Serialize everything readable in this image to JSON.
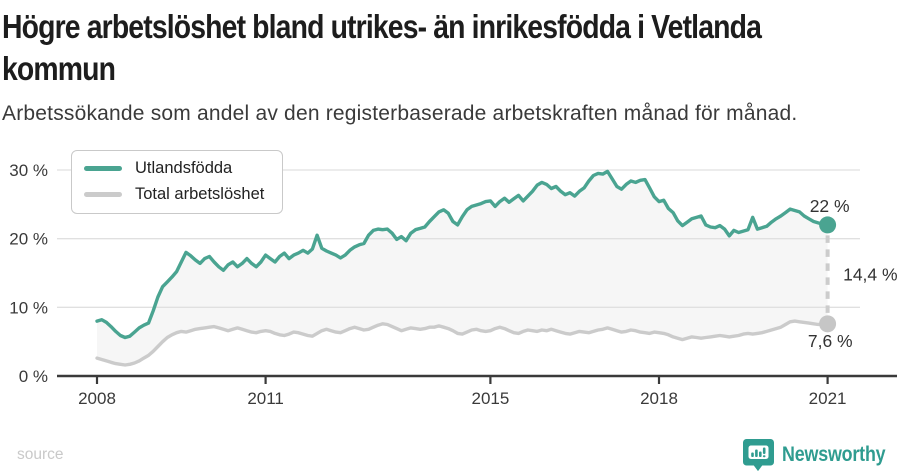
{
  "header": {
    "title_lines": [
      "Högre arbetslöshet bland utrikes- än inrikesfödda i Vetlanda",
      "kommun"
    ],
    "subtitle": "Arbetssökande som andel av den registerbaserade arbetskraften månad för månad."
  },
  "chart_data": {
    "type": "line",
    "title": "Högre arbetslöshet bland utrikes- än inrikesfödda i Vetlanda kommun",
    "subtitle": "Arbetssökande som andel av den registerbaserade arbetskraften månad för månad.",
    "x_unit": "month",
    "x_start": "2008-01",
    "x_end": "2021-01",
    "ylim": [
      0,
      30
    ],
    "grid": "horizontal",
    "legend_position": "top-left",
    "area_fill_between": "#f6f6f6",
    "yticks": [
      {
        "value": 0,
        "label": "0 %"
      },
      {
        "value": 10,
        "label": "10 %"
      },
      {
        "value": 20,
        "label": "20 %"
      },
      {
        "value": 30,
        "label": "30 %"
      }
    ],
    "xticks": [
      {
        "value": 2008,
        "label": "2008"
      },
      {
        "value": 2011,
        "label": "2011"
      },
      {
        "value": 2015,
        "label": "2015"
      },
      {
        "value": 2018,
        "label": "2018"
      },
      {
        "value": 2021,
        "label": "2021"
      }
    ],
    "gap_annotation": {
      "label": "14,4 %",
      "style": "dashed"
    },
    "series": [
      {
        "name": "Utlandsfödda",
        "color": "#4aa491",
        "end_label": "22 %",
        "values": [
          8.0,
          8.2,
          7.8,
          7.2,
          6.5,
          5.9,
          5.6,
          5.8,
          6.4,
          7.0,
          7.4,
          7.7,
          9.5,
          11.5,
          13.0,
          13.7,
          14.4,
          15.2,
          16.6,
          18.0,
          17.5,
          16.9,
          16.4,
          17.1,
          17.4,
          16.6,
          15.9,
          15.4,
          16.2,
          16.6,
          15.9,
          16.4,
          17.1,
          16.4,
          15.9,
          16.6,
          17.6,
          17.1,
          16.6,
          17.4,
          17.9,
          17.1,
          17.6,
          17.9,
          18.3,
          17.9,
          18.5,
          20.5,
          18.6,
          18.2,
          17.9,
          17.6,
          17.2,
          17.6,
          18.3,
          18.8,
          19.1,
          19.3,
          20.5,
          21.2,
          21.4,
          21.3,
          21.4,
          20.8,
          19.9,
          20.3,
          19.7,
          20.8,
          21.3,
          21.5,
          21.7,
          22.5,
          23.2,
          23.9,
          24.2,
          23.7,
          22.5,
          22.0,
          23.2,
          24.2,
          24.7,
          24.9,
          25.1,
          25.4,
          25.5,
          24.7,
          25.4,
          25.9,
          25.3,
          25.8,
          26.3,
          25.5,
          26.2,
          26.9,
          27.8,
          28.2,
          27.9,
          27.3,
          27.6,
          26.9,
          26.4,
          26.7,
          26.2,
          26.9,
          27.4,
          28.4,
          29.2,
          29.5,
          29.4,
          29.8,
          28.7,
          27.6,
          27.2,
          27.9,
          28.4,
          28.2,
          28.5,
          28.6,
          27.4,
          26.1,
          25.4,
          25.6,
          24.4,
          23.8,
          22.6,
          21.9,
          22.4,
          22.9,
          23.1,
          23.3,
          22.0,
          21.7,
          21.6,
          21.9,
          21.4,
          20.4,
          21.2,
          20.9,
          21.1,
          21.3,
          23.1,
          21.4,
          21.6,
          21.8,
          22.4,
          22.9,
          23.3,
          23.8,
          24.3,
          24.1,
          23.9,
          23.3,
          22.9,
          22.5,
          22.3,
          22.1,
          22.0
        ]
      },
      {
        "name": "Total arbetslöshet",
        "color": "#cbcbcb",
        "end_label": "7,6 %",
        "values": [
          2.6,
          2.4,
          2.2,
          2.0,
          1.8,
          1.7,
          1.6,
          1.7,
          1.9,
          2.2,
          2.6,
          3.0,
          3.6,
          4.3,
          5.0,
          5.6,
          6.0,
          6.3,
          6.5,
          6.4,
          6.6,
          6.8,
          6.9,
          7.0,
          7.1,
          7.2,
          7.0,
          6.8,
          6.6,
          6.8,
          7.0,
          6.8,
          6.6,
          6.4,
          6.3,
          6.5,
          6.6,
          6.5,
          6.2,
          6.0,
          5.9,
          6.1,
          6.4,
          6.3,
          6.1,
          5.9,
          5.8,
          6.2,
          6.6,
          6.8,
          6.6,
          6.4,
          6.3,
          6.6,
          6.9,
          7.1,
          6.9,
          6.7,
          6.8,
          7.1,
          7.4,
          7.6,
          7.5,
          7.2,
          6.9,
          6.6,
          6.8,
          7.0,
          6.9,
          6.8,
          6.9,
          7.1,
          7.1,
          7.3,
          7.1,
          6.9,
          6.6,
          6.2,
          6.1,
          6.4,
          6.7,
          6.8,
          6.6,
          6.5,
          6.6,
          6.9,
          7.1,
          6.9,
          6.6,
          6.3,
          6.2,
          6.5,
          6.7,
          6.6,
          6.5,
          6.7,
          6.6,
          6.8,
          6.6,
          6.4,
          6.2,
          6.1,
          6.3,
          6.5,
          6.4,
          6.3,
          6.5,
          6.7,
          6.8,
          7.0,
          6.8,
          6.6,
          6.4,
          6.5,
          6.7,
          6.6,
          6.4,
          6.3,
          6.2,
          6.4,
          6.3,
          6.2,
          6.0,
          5.7,
          5.5,
          5.3,
          5.5,
          5.7,
          5.6,
          5.5,
          5.6,
          5.7,
          5.8,
          5.9,
          5.8,
          5.7,
          5.8,
          5.9,
          6.1,
          6.2,
          6.1,
          6.2,
          6.3,
          6.5,
          6.7,
          6.9,
          7.1,
          7.5,
          7.9,
          8.0,
          7.9,
          7.8,
          7.7,
          7.6,
          7.5,
          7.6,
          7.6
        ]
      }
    ]
  },
  "footer": {
    "source_label": "source",
    "brand_name": "Newsworthy",
    "brand_color": "#2f9c90"
  }
}
